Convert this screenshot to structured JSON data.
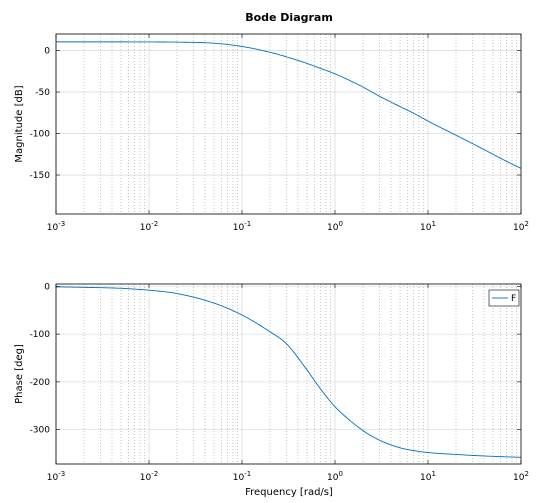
{
  "chart_data": {
    "type": "line",
    "title": "Bode Diagram",
    "x_scale": "log",
    "xlabel": "Frequency [rad/s]",
    "xlim": [
      0.001,
      100
    ],
    "x_ticks": [
      0.001,
      0.01,
      0.1,
      1,
      10,
      100
    ],
    "x_tick_labels": [
      {
        "base": "10",
        "exp": "-3"
      },
      {
        "base": "10",
        "exp": "-2"
      },
      {
        "base": "10",
        "exp": "-1"
      },
      {
        "base": "10",
        "exp": "0"
      },
      {
        "base": "10",
        "exp": "1"
      },
      {
        "base": "10",
        "exp": "2"
      }
    ],
    "grid": true,
    "line_color": "#0072BD",
    "x": [
      0.001,
      0.002,
      0.005,
      0.01,
      0.02,
      0.05,
      0.1,
      0.2,
      0.3,
      0.5,
      0.7,
      1,
      2,
      3,
      5,
      7,
      10,
      20,
      30,
      50,
      70,
      100
    ],
    "panels": [
      {
        "ylabel": "Magnitude [dB]",
        "ylim": [
          -197,
          20
        ],
        "y_ticks": [
          0,
          -50,
          -100,
          -150
        ],
        "y_tick_labels": [
          "0",
          "-50",
          "-100",
          "-150"
        ],
        "series": [
          {
            "values": [
              10.5,
              10.5,
              10.5,
              10.4,
              10.2,
              8.9,
              5.0,
              -2.0,
              -7.5,
              -15.5,
              -21.5,
              -28.0,
              -44.0,
              -55.0,
              -67.5,
              -75.5,
              -85.0,
              -102.0,
              -112.0,
              -125.0,
              -133.5,
              -142.0
            ]
          }
        ]
      },
      {
        "ylabel": "Phase [deg]",
        "ylim": [
          -372,
          5
        ],
        "y_ticks": [
          0,
          -100,
          -200,
          -300
        ],
        "y_tick_labels": [
          "0",
          "-100",
          "-200",
          "-300"
        ],
        "legend_position": "top-right",
        "series": [
          {
            "name": "F",
            "values": [
              -1,
              -2,
              -4,
              -8,
              -15,
              -35,
              -60,
              -95,
              -120,
              -175,
              -215,
              -252,
              -302,
              -322,
              -338,
              -344,
              -348,
              -352,
              -354,
              -356,
              -357,
              -358
            ]
          }
        ]
      }
    ]
  }
}
